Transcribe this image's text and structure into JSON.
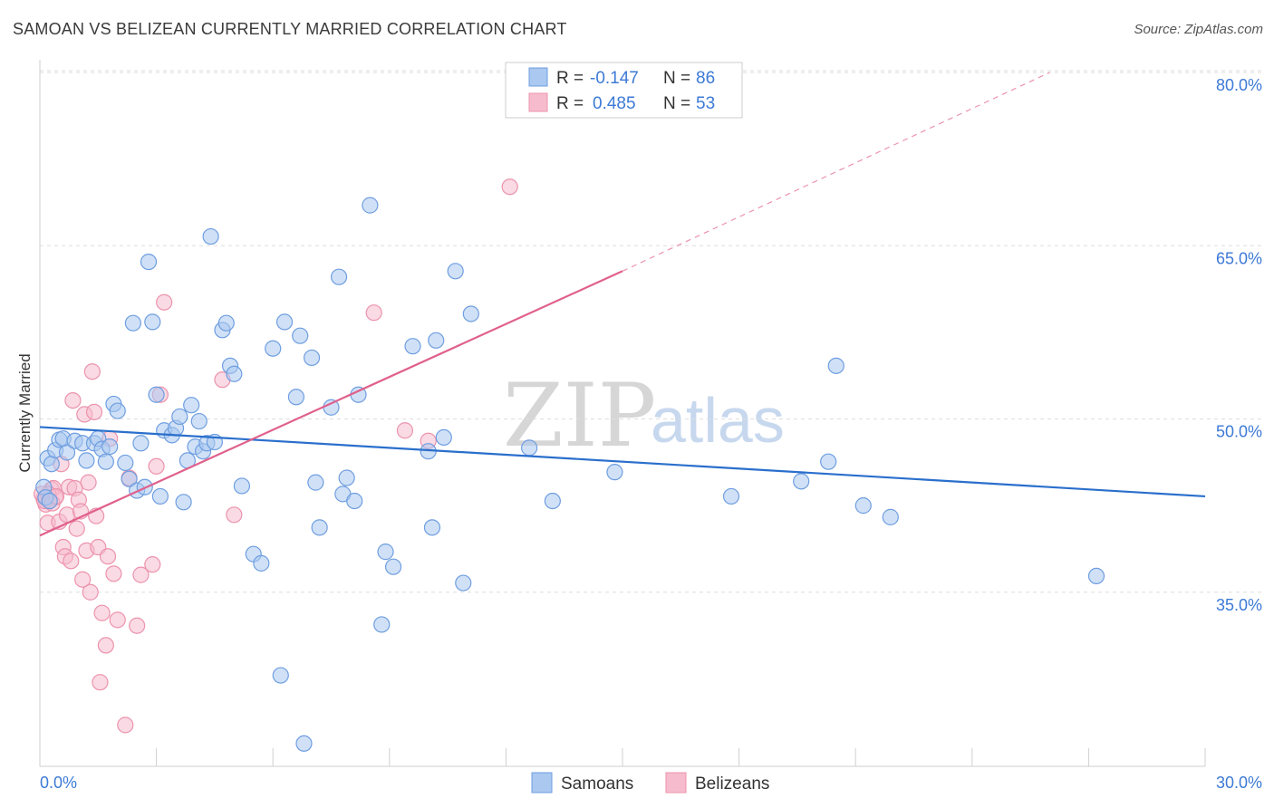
{
  "header": {
    "title": "SAMOAN VS BELIZEAN CURRENTLY MARRIED CORRELATION CHART",
    "source": "Source: ZipAtlas.com"
  },
  "legend": {
    "samoans": {
      "r_label": "R =",
      "r_value": "-0.147",
      "n_label": "N =",
      "n_value": "86"
    },
    "belizeans": {
      "r_label": "R =",
      "r_value": "0.485",
      "n_label": "N =",
      "n_value": "53"
    }
  },
  "bottom_legend": {
    "samoans": "Samoans",
    "belizeans": "Belizeans"
  },
  "watermark": {
    "zip": "ZIP",
    "atlas": "atlas"
  },
  "colors": {
    "samoans_fill": "#aac8f0",
    "samoans_stroke": "#6f9ee0",
    "samoans_line": "#2a6fcc",
    "belizeans_fill": "#f6bccd",
    "belizeans_stroke": "#ec93ad",
    "belizeans_line": "#e0608c",
    "axis_text": "#3d7ad6",
    "grid": "#dddddd"
  },
  "chart_data": {
    "type": "scatter",
    "title": "SAMOAN VS BELIZEAN CURRENTLY MARRIED CORRELATION CHART",
    "xlabel": "",
    "ylabel": "Currently Married",
    "xlim": [
      0,
      30
    ],
    "ylim": [
      20,
      83
    ],
    "y_ticks": [
      {
        "value": 35,
        "label": "35.0%"
      },
      {
        "value": 50,
        "label": "50.0%"
      },
      {
        "value": 65,
        "label": "65.0%"
      },
      {
        "value": 80,
        "label": "80.0%"
      }
    ],
    "x_ticks": [
      {
        "value": 0,
        "label": "0.0%"
      },
      {
        "value": 30,
        "label": "30.0%"
      }
    ],
    "series": [
      {
        "name": "Samoans",
        "trend": {
          "x": [
            0,
            30
          ],
          "y": [
            49.3,
            43.3
          ],
          "dashed_to": null
        },
        "points": [
          [
            0.2,
            46.6
          ],
          [
            0.3,
            46.1
          ],
          [
            0.4,
            47.3
          ],
          [
            0.5,
            48.2
          ],
          [
            0.6,
            48.3
          ],
          [
            0.7,
            47.1
          ],
          [
            0.9,
            48.1
          ],
          [
            1.1,
            47.9
          ],
          [
            1.2,
            46.4
          ],
          [
            1.4,
            47.9
          ],
          [
            1.5,
            48.3
          ],
          [
            1.6,
            47.4
          ],
          [
            1.7,
            46.3
          ],
          [
            1.8,
            47.6
          ],
          [
            1.9,
            51.3
          ],
          [
            2.0,
            50.7
          ],
          [
            2.2,
            46.2
          ],
          [
            2.3,
            44.8
          ],
          [
            2.4,
            58.3
          ],
          [
            2.5,
            43.8
          ],
          [
            2.6,
            47.9
          ],
          [
            2.7,
            44.1
          ],
          [
            2.8,
            63.6
          ],
          [
            2.9,
            58.4
          ],
          [
            3.0,
            52.1
          ],
          [
            3.1,
            43.3
          ],
          [
            3.2,
            49.0
          ],
          [
            3.4,
            48.6
          ],
          [
            3.5,
            49.2
          ],
          [
            3.6,
            50.2
          ],
          [
            3.7,
            42.8
          ],
          [
            3.8,
            46.4
          ],
          [
            3.9,
            51.2
          ],
          [
            4.0,
            47.6
          ],
          [
            4.1,
            49.8
          ],
          [
            4.2,
            47.2
          ],
          [
            4.3,
            47.9
          ],
          [
            4.4,
            65.8
          ],
          [
            4.5,
            48.0
          ],
          [
            4.7,
            57.7
          ],
          [
            4.8,
            58.3
          ],
          [
            4.9,
            54.6
          ],
          [
            5.0,
            53.9
          ],
          [
            5.2,
            44.2
          ],
          [
            5.5,
            38.3
          ],
          [
            5.7,
            37.5
          ],
          [
            6.0,
            56.1
          ],
          [
            6.2,
            27.8
          ],
          [
            6.3,
            58.4
          ],
          [
            6.6,
            51.9
          ],
          [
            6.7,
            57.2
          ],
          [
            6.8,
            21.9
          ],
          [
            7.0,
            55.3
          ],
          [
            7.1,
            44.5
          ],
          [
            7.2,
            40.6
          ],
          [
            7.5,
            51.0
          ],
          [
            7.7,
            62.3
          ],
          [
            7.8,
            43.5
          ],
          [
            7.9,
            44.9
          ],
          [
            8.1,
            42.9
          ],
          [
            8.2,
            52.1
          ],
          [
            8.5,
            68.5
          ],
          [
            8.8,
            32.2
          ],
          [
            8.9,
            38.5
          ],
          [
            9.1,
            37.2
          ],
          [
            9.6,
            56.3
          ],
          [
            10.0,
            47.2
          ],
          [
            10.1,
            40.6
          ],
          [
            10.2,
            56.8
          ],
          [
            10.4,
            48.4
          ],
          [
            10.7,
            62.8
          ],
          [
            10.9,
            35.8
          ],
          [
            11.1,
            59.1
          ],
          [
            12.6,
            47.5
          ],
          [
            13.2,
            42.9
          ],
          [
            14.8,
            45.4
          ],
          [
            17.8,
            43.3
          ],
          [
            19.6,
            44.6
          ],
          [
            20.3,
            46.3
          ],
          [
            20.5,
            54.6
          ],
          [
            21.2,
            42.5
          ],
          [
            21.9,
            41.5
          ],
          [
            27.2,
            36.4
          ],
          [
            0.1,
            44.1
          ],
          [
            0.15,
            43.2
          ],
          [
            0.25,
            42.9
          ]
        ]
      },
      {
        "name": "Belizeans",
        "trend": {
          "x": [
            0,
            15
          ],
          "y": [
            39.9,
            62.8
          ],
          "dashed_to": {
            "x": 26.0,
            "y": 80.0
          }
        },
        "points": [
          [
            0.1,
            43.1
          ],
          [
            0.15,
            42.6
          ],
          [
            0.2,
            41.0
          ],
          [
            0.3,
            43.9
          ],
          [
            0.35,
            44.0
          ],
          [
            0.4,
            43.2
          ],
          [
            0.5,
            41.1
          ],
          [
            0.55,
            46.1
          ],
          [
            0.6,
            38.9
          ],
          [
            0.65,
            38.1
          ],
          [
            0.7,
            41.7
          ],
          [
            0.75,
            44.1
          ],
          [
            0.8,
            37.7
          ],
          [
            0.85,
            51.6
          ],
          [
            0.9,
            44.0
          ],
          [
            0.95,
            40.5
          ],
          [
            1.0,
            43.0
          ],
          [
            1.05,
            42.0
          ],
          [
            1.1,
            36.1
          ],
          [
            1.15,
            50.4
          ],
          [
            1.2,
            38.6
          ],
          [
            1.25,
            44.5
          ],
          [
            1.3,
            35.0
          ],
          [
            1.35,
            54.1
          ],
          [
            1.4,
            50.6
          ],
          [
            1.45,
            41.6
          ],
          [
            1.5,
            38.9
          ],
          [
            1.55,
            27.2
          ],
          [
            1.6,
            33.2
          ],
          [
            1.7,
            30.4
          ],
          [
            1.75,
            38.1
          ],
          [
            1.8,
            48.3
          ],
          [
            1.9,
            36.6
          ],
          [
            2.0,
            32.6
          ],
          [
            2.2,
            23.5
          ],
          [
            2.3,
            44.9
          ],
          [
            2.5,
            32.1
          ],
          [
            2.6,
            36.5
          ],
          [
            2.9,
            37.4
          ],
          [
            3.0,
            45.9
          ],
          [
            3.1,
            52.1
          ],
          [
            3.2,
            60.1
          ],
          [
            4.7,
            53.4
          ],
          [
            5.0,
            41.7
          ],
          [
            8.6,
            59.2
          ],
          [
            9.4,
            49.0
          ],
          [
            10.0,
            48.1
          ],
          [
            12.1,
            70.1
          ],
          [
            0.05,
            43.5
          ],
          [
            0.12,
            42.9
          ],
          [
            0.22,
            43.5
          ],
          [
            0.32,
            42.7
          ],
          [
            0.42,
            43.3
          ]
        ]
      }
    ]
  }
}
